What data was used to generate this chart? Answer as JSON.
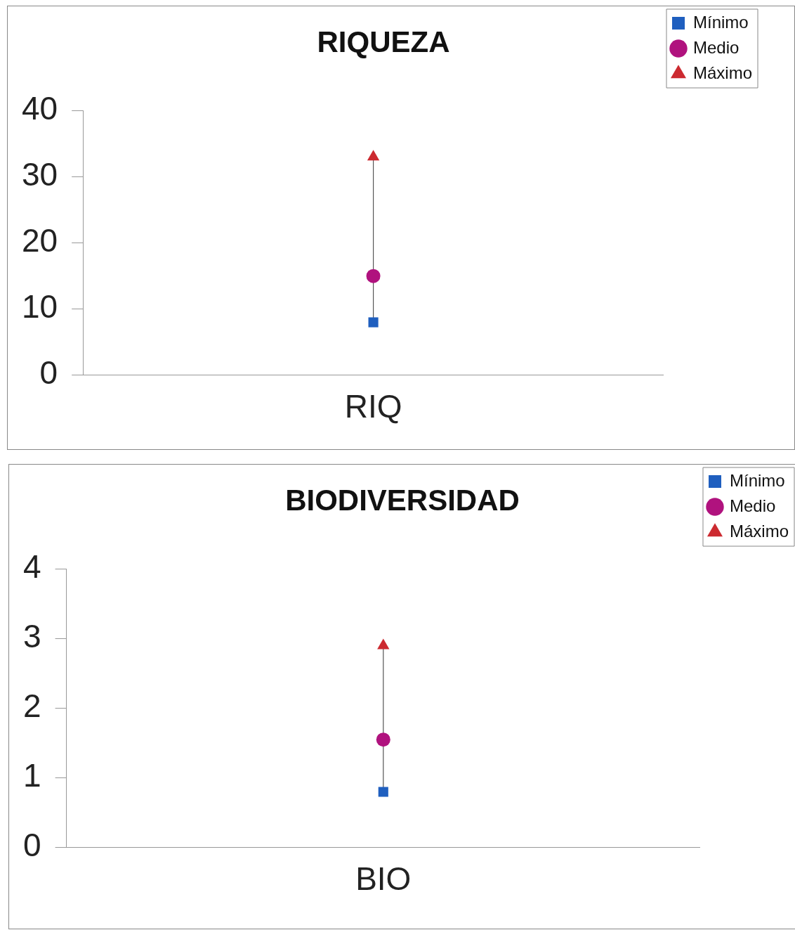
{
  "chart_data": [
    {
      "type": "scatter",
      "title": "RIQUEZA",
      "categories": [
        "RIQ"
      ],
      "ylim": [
        0,
        40
      ],
      "yticks": [
        0,
        10,
        20,
        30,
        40
      ],
      "grid": false,
      "legend": "right",
      "series": [
        {
          "name": "Mínimo",
          "color": "#1f5fbf",
          "marker": "square",
          "values": [
            8
          ]
        },
        {
          "name": "Medio",
          "color": "#b0127e",
          "marker": "circle",
          "values": [
            15
          ]
        },
        {
          "name": "Máximo",
          "color": "#cc2a30",
          "marker": "triangle",
          "values": [
            33
          ]
        }
      ]
    },
    {
      "type": "scatter",
      "title": "BIODIVERSIDAD",
      "categories": [
        "BIO"
      ],
      "ylim": [
        0,
        4
      ],
      "yticks": [
        0,
        1,
        2,
        3,
        4
      ],
      "grid": false,
      "legend": "right",
      "series": [
        {
          "name": "Mínimo",
          "color": "#1f5fbf",
          "marker": "square",
          "values": [
            0.8
          ]
        },
        {
          "name": "Medio",
          "color": "#b0127e",
          "marker": "circle",
          "values": [
            1.55
          ]
        },
        {
          "name": "Máximo",
          "color": "#cc2a30",
          "marker": "triangle",
          "values": [
            2.9
          ]
        }
      ]
    }
  ]
}
